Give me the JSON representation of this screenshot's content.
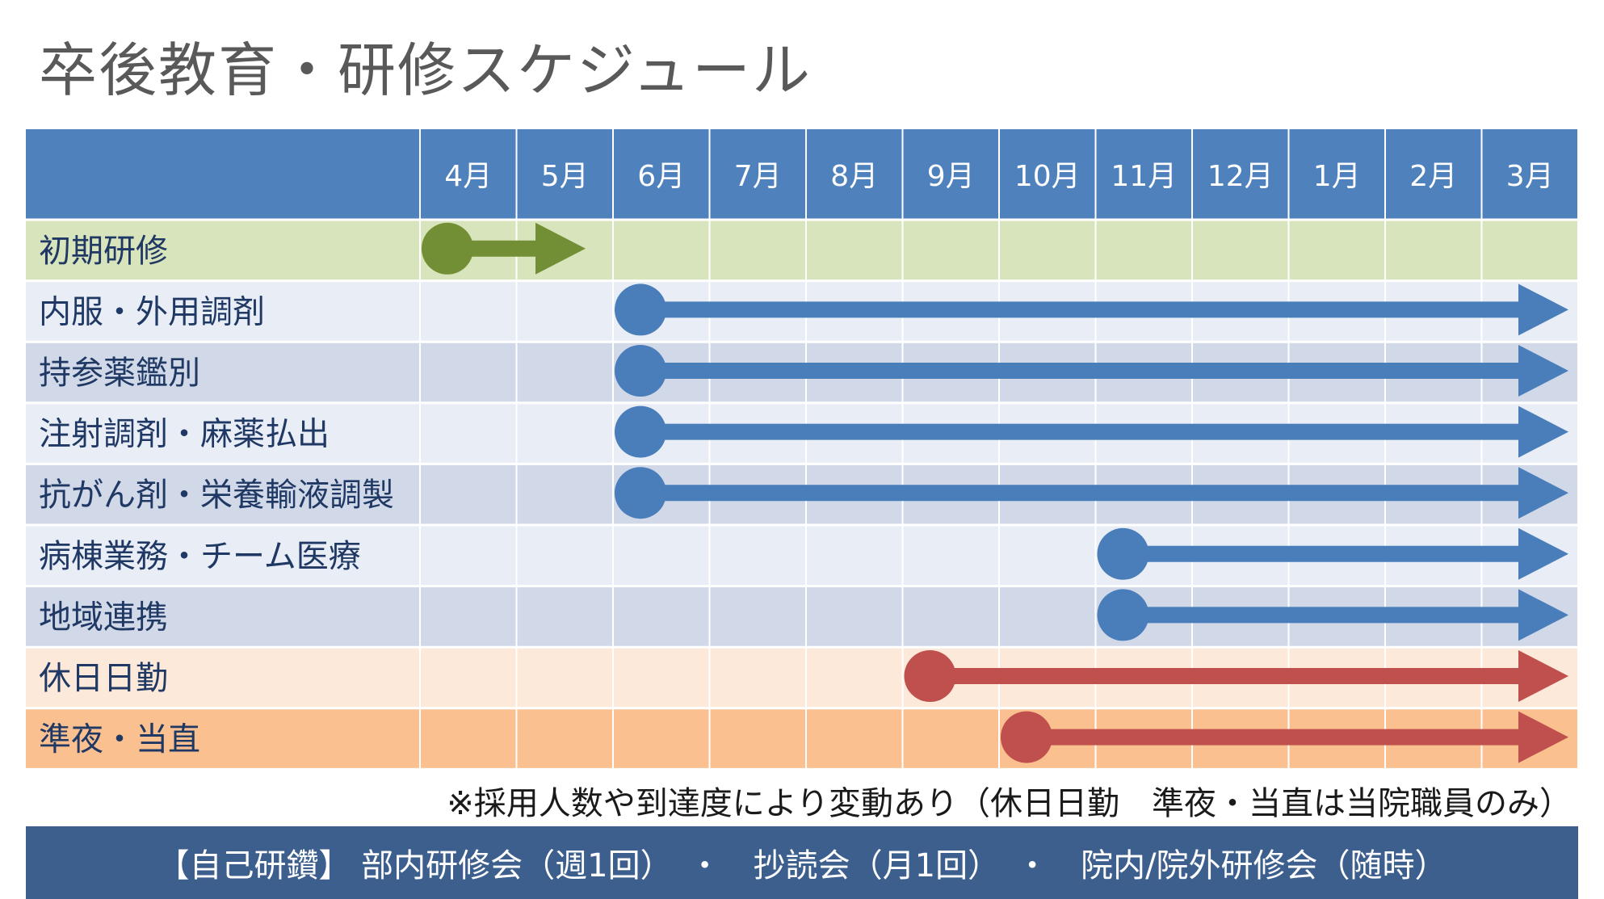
{
  "title": "卒後教育・研修スケジュール",
  "months": [
    "4月",
    "5月",
    "6月",
    "7月",
    "8月",
    "9月",
    "10月",
    "11月",
    "12月",
    "1月",
    "2月",
    "3月"
  ],
  "rows": [
    {
      "label": "初期研修",
      "start_month": 0,
      "end_month": 2,
      "color": "#738f35",
      "band": "#d8e4bc"
    },
    {
      "label": "内服・外用調剤",
      "start_month": 2,
      "end_month": 12,
      "color": "#4a7ebb",
      "band": "#e9eef6"
    },
    {
      "label": "持参薬鑑別",
      "start_month": 2,
      "end_month": 12,
      "color": "#4a7ebb",
      "band": "#d1d9e8"
    },
    {
      "label": "注射調剤・麻薬払出",
      "start_month": 2,
      "end_month": 12,
      "color": "#4a7ebb",
      "band": "#e9eef6"
    },
    {
      "label": "抗がん剤・栄養輸液調製",
      "start_month": 2,
      "end_month": 12,
      "color": "#4a7ebb",
      "band": "#d1d9e8"
    },
    {
      "label": "病棟業務・チーム医療",
      "start_month": 7,
      "end_month": 12,
      "color": "#4a7ebb",
      "band": "#e9eef6"
    },
    {
      "label": "地域連携",
      "start_month": 7,
      "end_month": 12,
      "color": "#4a7ebb",
      "band": "#d1d9e8"
    },
    {
      "label": "休日日勤",
      "start_month": 5,
      "end_month": 12,
      "color": "#c0504d",
      "band": "#fde9d9"
    },
    {
      "label": "準夜・当直",
      "start_month": 6,
      "end_month": 12,
      "color": "#c0504d",
      "band": "#fac090"
    }
  ],
  "note": "※採用人数や到達度により変動あり（休日日勤　準夜・当直は当院職員のみ）",
  "footer": "【自己研鑽】 部内研修会（週1回）　・　抄読会（月1回）　・　院内/院外研修会（随時）",
  "colors": {
    "header": "#4f81bd",
    "grid_line": "#ffffff",
    "footer": "#3d5f8e"
  }
}
